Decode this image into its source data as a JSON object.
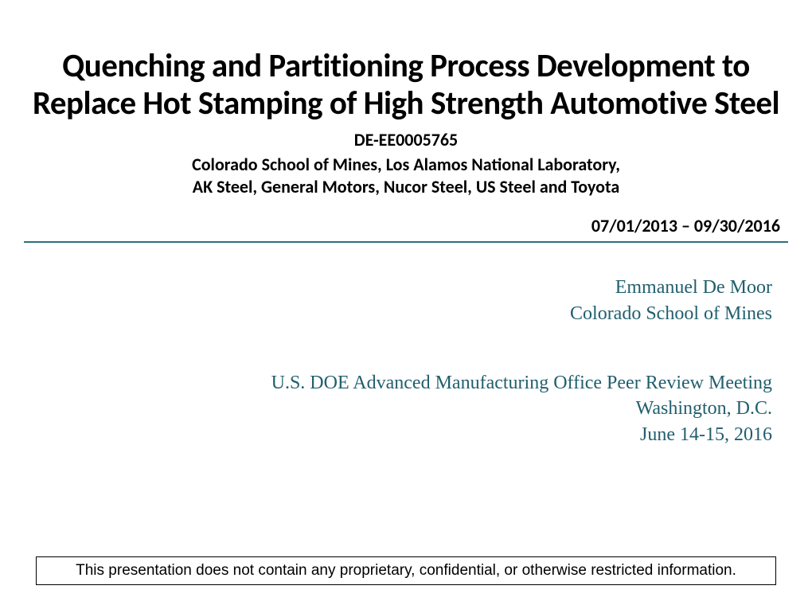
{
  "header": {
    "title": "Quenching and Partitioning Process Development to Replace Hot Stamping of High Strength Automotive Steel",
    "grant_id": "DE-EE0005765",
    "partners_line1": "Colorado School of Mines, Los Alamos National Laboratory,",
    "partners_line2": "AK Steel, General Motors, Nucor Steel, US Steel and Toyota",
    "dates": "07/01/2013 – 09/30/2016"
  },
  "author": {
    "name": "Emmanuel De Moor",
    "affiliation": "Colorado School of Mines"
  },
  "meeting": {
    "event": "U.S. DOE Advanced Manufacturing Office Peer Review Meeting",
    "location": "Washington, D.C.",
    "date": "June 14-15, 2016"
  },
  "disclaimer": "This presentation does not contain any proprietary, confidential, or otherwise restricted information.",
  "colors": {
    "title_text": "#000000",
    "accent_teal": "#225f6e",
    "divider": "#2f6f7a",
    "background": "#ffffff"
  },
  "typography": {
    "title_fontsize": 41,
    "title_weight": 700,
    "subhead_fontsize": 22,
    "subhead_weight": 700,
    "body_serif_fontsize": 24,
    "disclaimer_fontsize": 19
  }
}
